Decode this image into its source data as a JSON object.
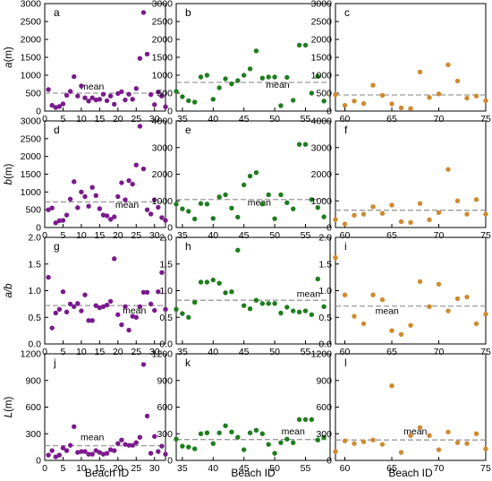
{
  "xlabel": "Beach ID",
  "colors": {
    "purple": "#7a1a8c",
    "green": "#1e7d1e",
    "orange": "#cf8a2e",
    "mean_line": "#9a9a9a"
  },
  "rows": [
    {
      "ylabel_var": "a",
      "ylabel_unit": "(m)"
    },
    {
      "ylabel_var": "b",
      "ylabel_unit": "(m)"
    },
    {
      "ylabel_var": "a/b",
      "ylabel_unit": ""
    },
    {
      "ylabel_var": "L",
      "ylabel_unit": "(m)"
    }
  ],
  "chart_data": [
    {
      "panel": "a",
      "type": "scatter",
      "color": "purple",
      "xlim": [
        0,
        33
      ],
      "ylim": [
        0,
        3000
      ],
      "xticks": [
        0,
        5,
        10,
        15,
        20,
        25,
        30
      ],
      "yticks": [
        0,
        500,
        1000,
        1500,
        2000,
        2500,
        3000
      ],
      "mean": 500,
      "mean_label": "mean",
      "mean_label_pos": [
        13,
        600
      ],
      "x": [
        1,
        2,
        3,
        4,
        5,
        6,
        7,
        8,
        9,
        10,
        11,
        12,
        13,
        14,
        15,
        16,
        17,
        18,
        19,
        20,
        21,
        22,
        23,
        24,
        25,
        26,
        27,
        28,
        29,
        30,
        31,
        32,
        33
      ],
      "y": [
        600,
        160,
        100,
        130,
        200,
        440,
        550,
        960,
        420,
        700,
        370,
        280,
        370,
        310,
        330,
        470,
        290,
        420,
        190,
        490,
        540,
        310,
        470,
        330,
        630,
        1470,
        2750,
        1590,
        460,
        180,
        530,
        420,
        120
      ]
    },
    {
      "panel": "b",
      "type": "scatter",
      "color": "green",
      "xlim": [
        34,
        59
      ],
      "ylim": [
        0,
        3000
      ],
      "xticks": [
        35,
        40,
        45,
        50,
        55
      ],
      "yticks": [
        0,
        500,
        1000,
        1500,
        2000,
        2500,
        3000
      ],
      "mean": 800,
      "mean_label": "mean",
      "mean_label_pos": [
        50.5,
        650
      ],
      "x": [
        34,
        35,
        36,
        37,
        38,
        39,
        40,
        41,
        42,
        43,
        44,
        45,
        46,
        47,
        48,
        49,
        50,
        51,
        52,
        53,
        54,
        55,
        56,
        57,
        58
      ],
      "y": [
        550,
        400,
        290,
        250,
        950,
        1000,
        330,
        650,
        900,
        760,
        850,
        1000,
        1180,
        1680,
        920,
        950,
        950,
        150,
        940,
        300,
        1840,
        1840,
        500,
        970,
        280
      ]
    },
    {
      "panel": "c",
      "type": "scatter",
      "color": "orange",
      "xlim": [
        59,
        75
      ],
      "ylim": [
        0,
        3000
      ],
      "xticks": [
        60,
        65,
        70,
        75
      ],
      "yticks": [
        0,
        500,
        1000,
        1500,
        2000,
        2500,
        3000
      ],
      "mean": 450,
      "mean_label": "",
      "mean_label_pos": null,
      "x": [
        59,
        60,
        61,
        62,
        63,
        64,
        65,
        66,
        67,
        68,
        69,
        70,
        71,
        72,
        73,
        74,
        75
      ],
      "y": [
        460,
        160,
        280,
        210,
        720,
        440,
        200,
        90,
        70,
        1090,
        380,
        480,
        1290,
        840,
        360,
        420,
        290
      ]
    },
    {
      "panel": "d",
      "type": "scatter",
      "color": "purple",
      "xlim": [
        0,
        33
      ],
      "ylim": [
        0,
        3000
      ],
      "xticks": [
        0,
        5,
        10,
        15,
        20,
        25,
        30
      ],
      "yticks": [
        0,
        500,
        1000,
        1500,
        2000,
        2500,
        3000
      ],
      "mean": 720,
      "mean_label": "mean",
      "mean_label_pos": [
        22.5,
        560
      ],
      "x": [
        1,
        2,
        3,
        4,
        5,
        6,
        7,
        8,
        9,
        10,
        11,
        12,
        13,
        14,
        15,
        16,
        17,
        18,
        19,
        20,
        21,
        22,
        23,
        24,
        25,
        26,
        27,
        28,
        29,
        30,
        31,
        32,
        33
      ],
      "y": [
        500,
        550,
        130,
        190,
        200,
        350,
        800,
        1290,
        560,
        1000,
        870,
        600,
        1130,
        900,
        530,
        350,
        330,
        230,
        300,
        870,
        1260,
        780,
        1320,
        1220,
        1760,
        2850,
        1650,
        500,
        380,
        780,
        570,
        280,
        200
      ]
    },
    {
      "panel": "e",
      "type": "scatter",
      "color": "green",
      "xlim": [
        34,
        59
      ],
      "ylim": [
        0,
        4000
      ],
      "xticks": [
        35,
        40,
        45,
        50,
        55
      ],
      "yticks": [
        0,
        1000,
        2000,
        3000,
        4000
      ],
      "mean": 1050,
      "mean_label": "mean",
      "mean_label_pos": [
        47.5,
        830
      ],
      "x": [
        34,
        35,
        36,
        37,
        38,
        39,
        40,
        41,
        42,
        43,
        44,
        45,
        46,
        47,
        48,
        49,
        50,
        51,
        52,
        53,
        54,
        55,
        56,
        57,
        58
      ],
      "y": [
        880,
        700,
        610,
        320,
        900,
        880,
        340,
        1150,
        1230,
        730,
        390,
        1600,
        1930,
        2060,
        880,
        1230,
        330,
        1230,
        930,
        700,
        3120,
        3120,
        1050,
        750,
        400
      ]
    },
    {
      "panel": "f",
      "type": "scatter",
      "color": "orange",
      "xlim": [
        59,
        75
      ],
      "ylim": [
        0,
        4000
      ],
      "xticks": [
        60,
        65,
        70,
        75
      ],
      "yticks": [
        0,
        1000,
        2000,
        3000,
        4000
      ],
      "mean": 650,
      "mean_label": "",
      "mean_label_pos": null,
      "x": [
        59,
        60,
        61,
        62,
        63,
        64,
        65,
        66,
        67,
        68,
        69,
        70,
        71,
        72,
        73,
        74,
        75
      ],
      "y": [
        300,
        130,
        460,
        500,
        780,
        530,
        840,
        220,
        190,
        900,
        290,
        560,
        2180,
        1000,
        500,
        1050,
        500
      ]
    },
    {
      "panel": "g",
      "type": "scatter",
      "color": "purple",
      "xlim": [
        0,
        33
      ],
      "ylim": [
        0,
        2
      ],
      "xticks": [
        0,
        5,
        10,
        15,
        20,
        25,
        30
      ],
      "yticks": [
        0.0,
        0.5,
        1.0,
        1.5,
        2.0
      ],
      "mean": 0.72,
      "mean_label": "mean",
      "mean_label_pos": [
        24.5,
        0.57
      ],
      "x": [
        1,
        2,
        3,
        4,
        5,
        6,
        7,
        8,
        9,
        10,
        11,
        12,
        13,
        14,
        15,
        16,
        17,
        18,
        19,
        20,
        21,
        22,
        23,
        24,
        25,
        26,
        27,
        28,
        29,
        30,
        31,
        32,
        33
      ],
      "y": [
        1.25,
        0.3,
        0.58,
        0.65,
        0.98,
        0.6,
        0.75,
        0.7,
        0.76,
        0.62,
        0.92,
        0.44,
        0.44,
        0.72,
        0.68,
        0.7,
        0.73,
        0.8,
        1.6,
        0.55,
        0.36,
        0.7,
        0.26,
        0.52,
        0.5,
        0.7,
        0.97,
        0.97,
        0.75,
        0.63,
        0.98,
        1.34,
        0.65
      ]
    },
    {
      "panel": "h",
      "type": "scatter",
      "color": "green",
      "xlim": [
        34,
        59
      ],
      "ylim": [
        0,
        2
      ],
      "xticks": [
        35,
        40,
        45,
        50,
        55
      ],
      "yticks": [
        0.0,
        0.5,
        1.0,
        1.5,
        2.0
      ],
      "mean": 0.82,
      "mean_label": "mean",
      "mean_label_pos": [
        55.5,
        0.88
      ],
      "x": [
        34,
        35,
        36,
        37,
        38,
        39,
        40,
        41,
        42,
        43,
        44,
        45,
        46,
        47,
        48,
        49,
        50,
        51,
        52,
        53,
        54,
        55,
        56,
        57,
        58
      ],
      "y": [
        0.65,
        0.57,
        0.5,
        0.78,
        1.16,
        1.16,
        1.2,
        1.14,
        0.96,
        0.98,
        1.76,
        0.72,
        0.66,
        0.82,
        0.76,
        0.76,
        0.76,
        0.58,
        0.69,
        0.62,
        0.6,
        0.62,
        0.55,
        1.22,
        0.7
      ]
    },
    {
      "panel": "i",
      "type": "scatter",
      "color": "orange",
      "xlim": [
        59,
        75
      ],
      "ylim": [
        0,
        2
      ],
      "xticks": [
        60,
        65,
        70,
        75
      ],
      "yticks": [
        0.0,
        0.5,
        1.0,
        1.5,
        2.0
      ],
      "mean": 0.71,
      "mean_label": "mean",
      "mean_label_pos": [
        64.5,
        0.56
      ],
      "x": [
        59,
        60,
        61,
        62,
        63,
        64,
        65,
        66,
        67,
        68,
        69,
        70,
        71,
        72,
        73,
        74,
        75
      ],
      "y": [
        1.62,
        0.92,
        0.52,
        0.38,
        0.92,
        0.83,
        0.25,
        0.18,
        0.35,
        1.17,
        0.7,
        1.12,
        0.62,
        0.85,
        0.88,
        0.38,
        0.56
      ]
    },
    {
      "panel": "j",
      "type": "scatter",
      "color": "purple",
      "xlim": [
        0,
        33
      ],
      "ylim": [
        0,
        1200
      ],
      "xticks": [
        0,
        5,
        10,
        15,
        20,
        25,
        30
      ],
      "yticks": [
        0,
        300,
        600,
        900,
        1200
      ],
      "mean": 165,
      "mean_label": "mean",
      "mean_label_pos": [
        13,
        225
      ],
      "x": [
        1,
        2,
        3,
        4,
        5,
        6,
        7,
        8,
        9,
        10,
        11,
        12,
        13,
        14,
        15,
        16,
        17,
        18,
        19,
        20,
        21,
        22,
        23,
        24,
        25,
        26,
        27,
        28,
        29,
        30,
        31,
        32,
        33
      ],
      "y": [
        60,
        110,
        40,
        60,
        140,
        110,
        170,
        380,
        90,
        100,
        100,
        70,
        70,
        110,
        90,
        70,
        80,
        120,
        110,
        190,
        230,
        180,
        170,
        170,
        200,
        260,
        1080,
        500,
        80,
        270,
        100,
        160,
        70
      ]
    },
    {
      "panel": "k",
      "type": "scatter",
      "color": "green",
      "xlim": [
        34,
        59
      ],
      "ylim": [
        0,
        1200
      ],
      "xticks": [
        35,
        40,
        45,
        50,
        55
      ],
      "yticks": [
        0,
        300,
        600,
        900,
        1200
      ],
      "mean": 235,
      "mean_label": "mean",
      "mean_label_pos": [
        53,
        290
      ],
      "x": [
        34,
        35,
        36,
        37,
        38,
        39,
        40,
        41,
        42,
        43,
        44,
        45,
        46,
        47,
        48,
        49,
        50,
        51,
        52,
        53,
        54,
        55,
        56,
        57,
        58
      ],
      "y": [
        240,
        160,
        150,
        130,
        300,
        310,
        190,
        310,
        390,
        320,
        260,
        120,
        310,
        340,
        300,
        180,
        80,
        200,
        240,
        200,
        460,
        460,
        460,
        230,
        260
      ]
    },
    {
      "panel": "l",
      "type": "scatter",
      "color": "orange",
      "xlim": [
        59,
        75
      ],
      "ylim": [
        0,
        1200
      ],
      "xticks": [
        60,
        65,
        70,
        75
      ],
      "yticks": [
        0,
        300,
        600,
        900,
        1200
      ],
      "mean": 230,
      "mean_label": "mean",
      "mean_label_pos": [
        67.5,
        290
      ],
      "x": [
        59,
        60,
        61,
        62,
        63,
        64,
        65,
        66,
        67,
        68,
        69,
        70,
        71,
        72,
        73,
        74,
        75
      ],
      "y": [
        100,
        220,
        190,
        210,
        230,
        180,
        840,
        90,
        280,
        370,
        280,
        120,
        320,
        200,
        190,
        300,
        130
      ]
    }
  ]
}
